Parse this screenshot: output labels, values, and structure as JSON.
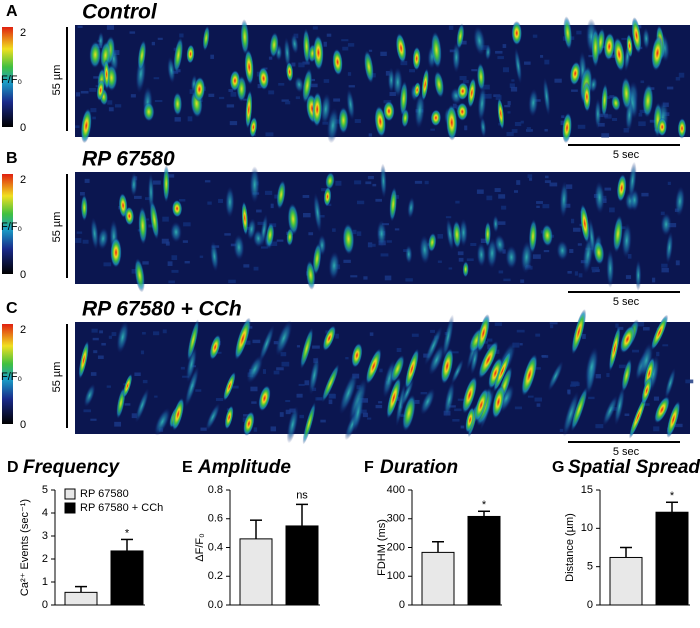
{
  "panels": [
    {
      "letter": "A",
      "title": "Control"
    },
    {
      "letter": "B",
      "title": "RP 67580"
    },
    {
      "letter": "C",
      "title": "RP 67580 + CCh"
    }
  ],
  "colorbar": {
    "max": "2",
    "min": "0",
    "label": "F/F₀"
  },
  "space_scale": "55 µm",
  "time_scale": "5 sec",
  "legend": [
    {
      "name": "RP 67580",
      "color": "#e8e8e8"
    },
    {
      "name": "RP 67580 + CCh",
      "color": "#000000"
    }
  ],
  "chart_data": [
    {
      "type": "bar",
      "letter": "D",
      "title": "Frequency",
      "y_label": "Ca²⁺ Events (sec⁻¹)",
      "values": [
        0.55,
        2.35
      ],
      "errors": [
        0.25,
        0.5
      ],
      "annotation": "*",
      "ylim": [
        0,
        5
      ],
      "yticks": [
        0,
        1,
        2,
        3,
        4,
        5
      ]
    },
    {
      "type": "bar",
      "letter": "E",
      "title": "Amplitude",
      "y_label": "ΔF/F₀",
      "values": [
        0.46,
        0.55
      ],
      "errors": [
        0.13,
        0.15
      ],
      "annotation": "ns",
      "ylim": [
        0,
        0.8
      ],
      "yticks": [
        {
          "value": 0,
          "label": "0.0"
        },
        0.2,
        0.4,
        0.6,
        0.8
      ]
    },
    {
      "type": "bar",
      "letter": "F",
      "title": "Duration",
      "y_label": "FDHM (ms)",
      "values": [
        183,
        308
      ],
      "errors": [
        37,
        18
      ],
      "annotation": "*",
      "ylim": [
        0,
        400
      ],
      "yticks": [
        0,
        100,
        200,
        300,
        400
      ]
    },
    {
      "type": "bar",
      "letter": "G",
      "title": "Spatial Spread",
      "y_label": "Distance (µm)",
      "values": [
        6.2,
        12.1
      ],
      "errors": [
        1.3,
        1.3
      ],
      "annotation": "*",
      "ylim": [
        0,
        15
      ],
      "yticks": [
        0,
        5,
        10,
        15
      ]
    }
  ]
}
